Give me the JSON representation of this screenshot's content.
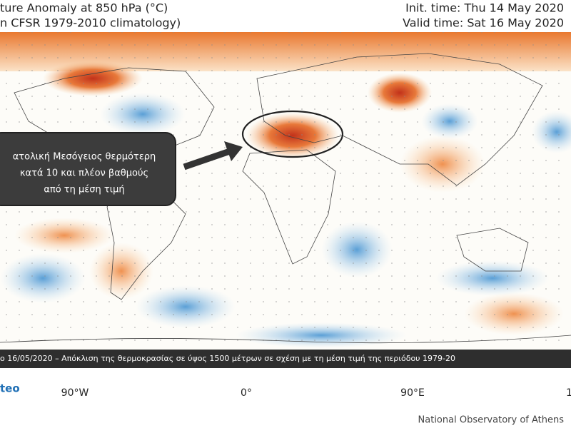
{
  "header": {
    "title": "ture Anomaly at 850 hPa (°C)",
    "subtitle": "n CFSR 1979-2010 climatology)",
    "init_time": "Init. time: Thu 14 May 2020",
    "valid_time": "Valid time: Sat 16 May 2020"
  },
  "annotation": {
    "lines": [
      "ατολική Μεσόγειος θερμότερη",
      "κατά 10 και πλέον βαθμούς",
      "από τη μέση τιμή"
    ]
  },
  "caption": "ο 16/05/2020 – Απόκλιση της θερμοκρασίας  σε ύψος 1500 μέτρων σε σχέση με τη μέση τιμή της περιόδου 1979-20",
  "map": {
    "lon_labels": [
      "90°W",
      "0°",
      "90°E",
      "1"
    ]
  },
  "footer": {
    "logo": "teo",
    "source": "National Observatory of Athens"
  }
}
